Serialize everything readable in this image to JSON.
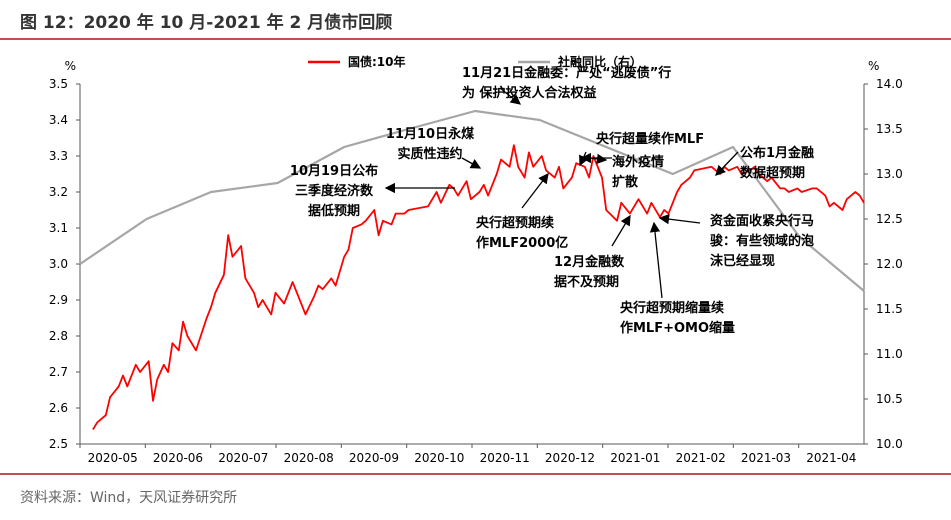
{
  "title": "图 12：2020 年 10 月-2021 年 2 月债市回顾",
  "source": "资料来源：Wind，天风证券研究所",
  "chart_data": {
    "type": "line",
    "left_unit": "%",
    "right_unit": "%",
    "y_left": {
      "min": 2.5,
      "max": 3.5,
      "ticks": [
        "2.5",
        "2.6",
        "2.7",
        "2.8",
        "2.9",
        "3.0",
        "3.1",
        "3.2",
        "3.3",
        "3.4",
        "3.5"
      ]
    },
    "y_right": {
      "min": 10.0,
      "max": 14.0,
      "ticks": [
        "10.0",
        "10.5",
        "11.0",
        "11.5",
        "12.0",
        "12.5",
        "13.0",
        "13.5",
        "14.0"
      ]
    },
    "x_ticks": [
      "2020-05",
      "2020-06",
      "2020-07",
      "2020-08",
      "2020-09",
      "2020-10",
      "2020-11",
      "2020-12",
      "2021-01",
      "2021-02",
      "2021-03",
      "2021-04"
    ],
    "series": [
      {
        "name": "国债:10年",
        "axis": "left",
        "color": "#ff0000",
        "x": [
          "2020-05-06",
          "2020-05-08",
          "2020-05-12",
          "2020-05-14",
          "2020-05-18",
          "2020-05-20",
          "2020-05-22",
          "2020-05-26",
          "2020-05-28",
          "2020-06-01",
          "2020-06-03",
          "2020-06-05",
          "2020-06-08",
          "2020-06-10",
          "2020-06-12",
          "2020-06-15",
          "2020-06-17",
          "2020-06-19",
          "2020-06-23",
          "2020-06-28",
          "2020-06-30",
          "2020-07-02",
          "2020-07-06",
          "2020-07-08",
          "2020-07-10",
          "2020-07-14",
          "2020-07-16",
          "2020-07-20",
          "2020-07-22",
          "2020-07-24",
          "2020-07-28",
          "2020-07-30",
          "2020-08-03",
          "2020-08-05",
          "2020-08-07",
          "2020-08-11",
          "2020-08-13",
          "2020-08-17",
          "2020-08-19",
          "2020-08-21",
          "2020-08-25",
          "2020-08-27",
          "2020-08-31",
          "2020-09-02",
          "2020-09-04",
          "2020-09-08",
          "2020-09-10",
          "2020-09-14",
          "2020-09-16",
          "2020-09-18",
          "2020-09-22",
          "2020-09-24",
          "2020-09-28",
          "2020-09-30",
          "2020-10-09",
          "2020-10-13",
          "2020-10-15",
          "2020-10-19",
          "2020-10-21",
          "2020-10-23",
          "2020-10-27",
          "2020-10-29",
          "2020-11-02",
          "2020-11-04",
          "2020-11-06",
          "2020-11-10",
          "2020-11-12",
          "2020-11-16",
          "2020-11-18",
          "2020-11-20",
          "2020-11-23",
          "2020-11-25",
          "2020-11-27",
          "2020-12-01",
          "2020-12-03",
          "2020-12-07",
          "2020-12-09",
          "2020-12-11",
          "2020-12-15",
          "2020-12-17",
          "2020-12-21",
          "2020-12-23",
          "2020-12-25",
          "2020-12-29",
          "2020-12-31",
          "2021-01-05",
          "2021-01-07",
          "2021-01-11",
          "2021-01-13",
          "2021-01-15",
          "2021-01-19",
          "2021-01-21",
          "2021-01-25",
          "2021-01-27",
          "2021-01-29",
          "2021-02-02",
          "2021-02-04",
          "2021-02-08",
          "2021-02-10",
          "2021-02-18",
          "2021-02-22",
          "2021-02-24",
          "2021-02-26",
          "2021-03-02",
          "2021-03-04",
          "2021-03-08",
          "2021-03-10",
          "2021-03-12",
          "2021-03-16",
          "2021-03-18",
          "2021-03-22",
          "2021-03-24",
          "2021-03-26",
          "2021-03-30",
          "2021-04-01",
          "2021-04-06",
          "2021-04-08",
          "2021-04-12",
          "2021-04-14",
          "2021-04-16",
          "2021-04-20",
          "2021-04-22",
          "2021-04-26",
          "2021-04-28",
          "2021-04-30"
        ],
        "values": [
          2.54,
          2.56,
          2.58,
          2.63,
          2.66,
          2.69,
          2.66,
          2.72,
          2.7,
          2.73,
          2.62,
          2.68,
          2.72,
          2.7,
          2.78,
          2.76,
          2.84,
          2.8,
          2.76,
          2.85,
          2.88,
          2.92,
          2.97,
          3.08,
          3.02,
          3.05,
          2.96,
          2.92,
          2.88,
          2.9,
          2.86,
          2.92,
          2.89,
          2.92,
          2.95,
          2.89,
          2.86,
          2.91,
          2.94,
          2.93,
          2.96,
          2.94,
          3.02,
          3.04,
          3.1,
          3.11,
          3.12,
          3.15,
          3.08,
          3.12,
          3.11,
          3.14,
          3.14,
          3.15,
          3.16,
          3.2,
          3.17,
          3.22,
          3.21,
          3.19,
          3.23,
          3.18,
          3.2,
          3.22,
          3.19,
          3.25,
          3.29,
          3.27,
          3.33,
          3.27,
          3.24,
          3.31,
          3.27,
          3.3,
          3.26,
          3.24,
          3.27,
          3.21,
          3.24,
          3.28,
          3.27,
          3.24,
          3.3,
          3.24,
          3.15,
          3.12,
          3.17,
          3.14,
          3.16,
          3.18,
          3.14,
          3.17,
          3.13,
          3.15,
          3.14,
          3.2,
          3.22,
          3.24,
          3.26,
          3.27,
          3.25,
          3.27,
          3.26,
          3.27,
          3.25,
          3.26,
          3.27,
          3.25,
          3.23,
          3.24,
          3.21,
          3.21,
          3.2,
          3.21,
          3.2,
          3.21,
          3.21,
          3.19,
          3.16,
          3.17,
          3.15,
          3.18,
          3.2,
          3.19,
          3.17
        ]
      },
      {
        "name": "社融同比（右）",
        "axis": "right",
        "color": "#a6a6a6",
        "x": [
          "2020-04-30",
          "2020-05-31",
          "2020-06-30",
          "2020-07-31",
          "2020-08-31",
          "2020-09-30",
          "2020-10-31",
          "2020-11-30",
          "2020-12-31",
          "2021-01-31",
          "2021-02-28",
          "2021-03-31",
          "2021-04-30"
        ],
        "values": [
          12.0,
          12.5,
          12.8,
          12.9,
          13.3,
          13.5,
          13.7,
          13.6,
          13.3,
          13.0,
          13.3,
          12.3,
          11.7
        ]
      }
    ],
    "annotations": [
      {
        "lines": [
          "11月21日金融委：严处“逃废债”行",
          "为 保护投资人合法权益"
        ]
      },
      {
        "lines": [
          "11月10日永煤",
          "实质性违约"
        ]
      },
      {
        "lines": [
          "10月19日公布",
          "三季度经济数",
          "据低预期"
        ]
      },
      {
        "lines": [
          "央行超量续作MLF"
        ]
      },
      {
        "lines": [
          "海外疫情",
          "扩散"
        ]
      },
      {
        "lines": [
          "公布1月金融",
          "数据超预期"
        ]
      },
      {
        "lines": [
          "央行超预期续",
          "作MLF2000亿"
        ]
      },
      {
        "lines": [
          "12月金融数",
          "据不及预期"
        ]
      },
      {
        "lines": [
          "资金面收紧央行马",
          "骏：有些领域的泡",
          "沫已经显现"
        ]
      },
      {
        "lines": [
          "央行超预期缩量续",
          "作MLF+OMO缩量"
        ]
      }
    ]
  }
}
